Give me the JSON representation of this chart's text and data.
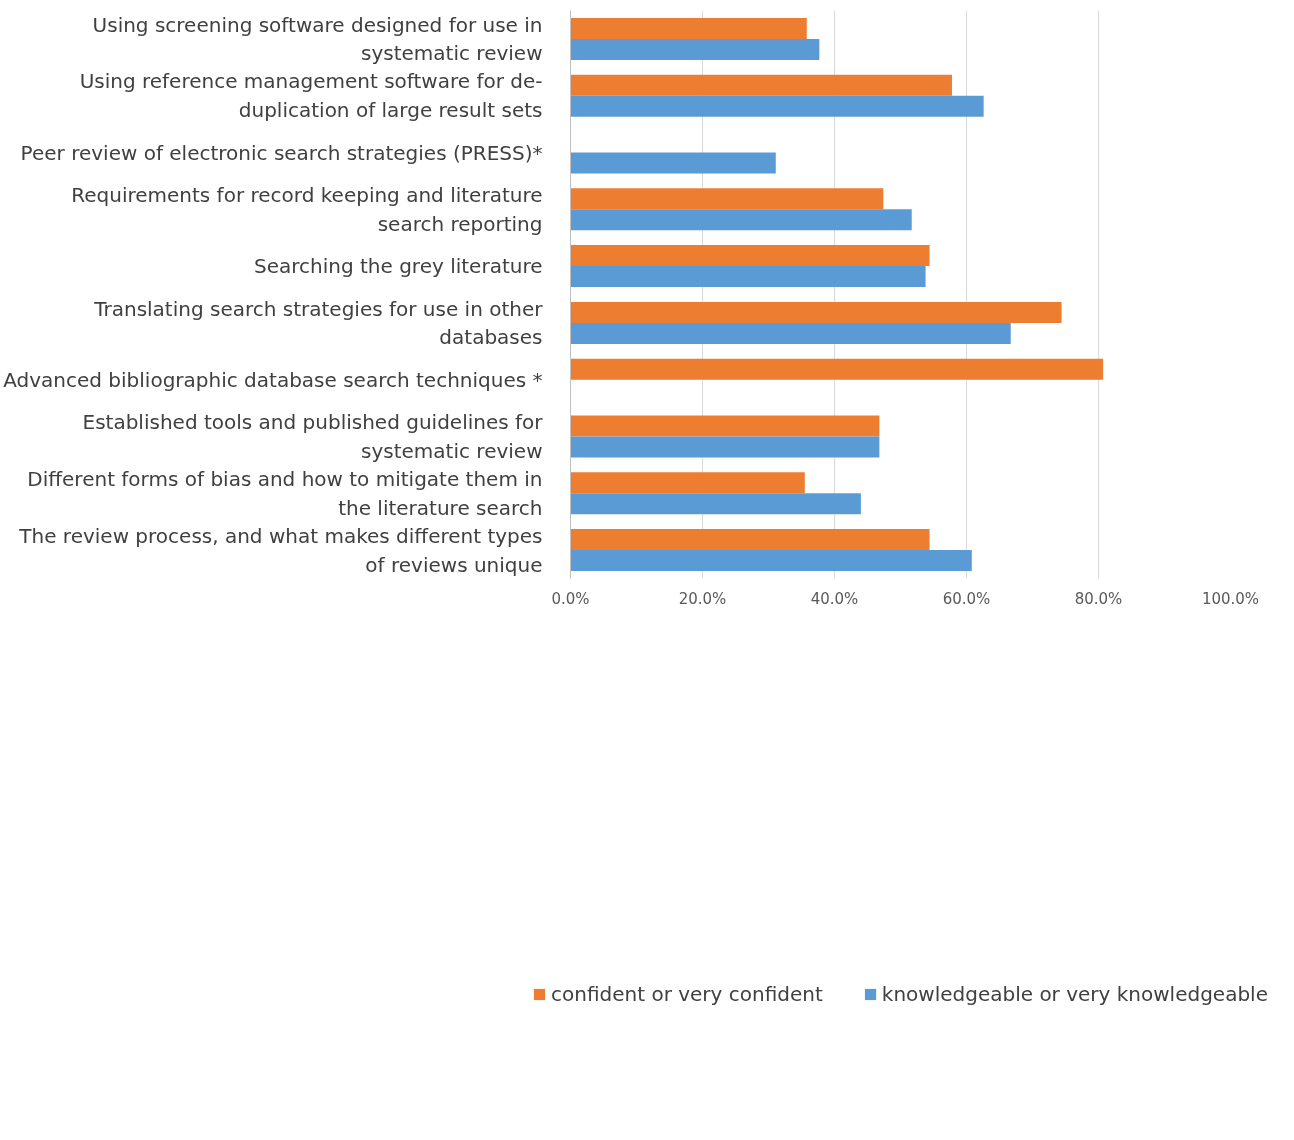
{
  "chart_data": {
    "type": "bar",
    "orientation": "horizontal",
    "categories": [
      "Using screening software designed for use in systematic review",
      "Using reference management software for de-duplication of large result sets",
      "Peer review of electronic search strategies (PRESS)*",
      "Requirements for record keeping and literature search reporting",
      "Searching the grey literature",
      "Translating search strategies for use in other databases",
      "Advanced bibliographic database search techniques *",
      "Established tools and published guidelines for systematic review",
      "Different forms of bias and how to mitigate them in the literature search",
      "The review process, and what makes different types of reviews unique"
    ],
    "series": [
      {
        "name": "confident or very confident",
        "color": "#ed7d31",
        "values": [
          35.8,
          57.8,
          null,
          47.4,
          54.4,
          74.4,
          80.7,
          46.8,
          35.5,
          54.4
        ]
      },
      {
        "name": "knowledgeable or very knowledgeable",
        "color": "#5b9bd5",
        "values": [
          37.7,
          62.6,
          31.1,
          51.7,
          53.8,
          66.7,
          null,
          46.8,
          44.0,
          60.8
        ]
      }
    ],
    "xlim": [
      0,
      100
    ],
    "xticks": [
      {
        "value": 0,
        "label": "0.0%"
      },
      {
        "value": 20,
        "label": "20.0%"
      },
      {
        "value": 40,
        "label": "40.0%"
      },
      {
        "value": 60,
        "label": "60.0%"
      },
      {
        "value": 80,
        "label": "80.0%"
      },
      {
        "value": 100,
        "label": "100.0%"
      }
    ],
    "grid": "x",
    "legend": "bottom"
  }
}
